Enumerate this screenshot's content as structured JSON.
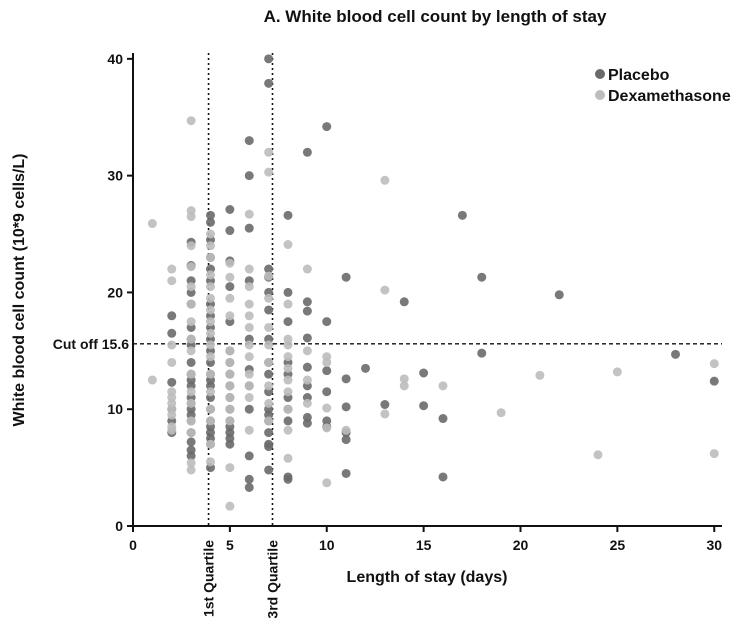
{
  "chart_data": {
    "type": "scatter",
    "title": "A. White blood cell count by length of stay",
    "x_label": "Length of stay (days)",
    "y_label": "White blood  cell count (10*9 cells/L)",
    "xlim": [
      0,
      30.4
    ],
    "ylim": [
      0,
      40.5
    ],
    "xticks": [
      0,
      5,
      10,
      15,
      20,
      25,
      30
    ],
    "yticks": [
      0,
      10,
      20,
      30,
      40
    ],
    "legend": "upper right",
    "reference_lines": [
      {
        "axis": "x",
        "value": 3.9,
        "label": "1st Quartile"
      },
      {
        "axis": "x",
        "value": 7.2,
        "label": "3rd Quartile"
      },
      {
        "axis": "y",
        "value": 15.6,
        "label": "Cut off 15.6"
      }
    ],
    "series": [
      {
        "name": "Placebo",
        "color": "#6a6a6a",
        "x": [
          2,
          2,
          2,
          2,
          2,
          2,
          3,
          3,
          3,
          3,
          3,
          3,
          3,
          3,
          3,
          3,
          3,
          3,
          3,
          3,
          3,
          3,
          3,
          3,
          3,
          3,
          3,
          4,
          4,
          4,
          4,
          4,
          4,
          4,
          4,
          4,
          4,
          4,
          4,
          4,
          4,
          4,
          4,
          4,
          4,
          4,
          4,
          4,
          4,
          4,
          5,
          5,
          5,
          5,
          5,
          5,
          5,
          5,
          5,
          5,
          5,
          5,
          5,
          5,
          5,
          5,
          6,
          6,
          6,
          6,
          6,
          6,
          6,
          6,
          6,
          6,
          6,
          7,
          7,
          7,
          7,
          7,
          7,
          7,
          7,
          7,
          7,
          7,
          7,
          7,
          7,
          7,
          7,
          7,
          8,
          8,
          8,
          8,
          8,
          8,
          8,
          8,
          8,
          8,
          9,
          9,
          9,
          9,
          9,
          9,
          9,
          9,
          9,
          10,
          10,
          10,
          10,
          10,
          10,
          11,
          11,
          11,
          11,
          11,
          11,
          12,
          13,
          14,
          15,
          15,
          16,
          16,
          17,
          18,
          18,
          22,
          28,
          30
        ],
        "values": [
          18,
          16.5,
          12.3,
          10,
          9,
          8,
          24.3,
          22.3,
          21,
          20,
          19,
          17,
          16,
          15.5,
          14,
          13,
          12.5,
          12,
          11,
          10.5,
          10,
          9.5,
          9,
          8,
          7.2,
          6.5,
          6,
          26.6,
          26,
          24.5,
          23,
          22,
          21,
          19,
          18,
          17,
          16,
          15,
          14,
          13,
          12.5,
          12,
          11,
          10,
          9,
          8.5,
          8,
          7.5,
          7,
          5,
          27.1,
          25.3,
          22.7,
          20.5,
          17.5,
          15,
          14,
          13,
          12,
          11,
          10,
          9,
          8.5,
          8,
          7.5,
          7,
          33,
          30,
          25.5,
          21,
          16,
          13.4,
          12,
          10,
          6,
          4,
          3.3,
          40,
          37.9,
          22,
          21.3,
          20,
          18.5,
          16,
          14,
          13,
          11.5,
          10,
          9.5,
          9,
          8,
          7,
          6.8,
          4.8,
          26.6,
          20,
          17.5,
          14,
          13,
          11,
          10,
          9,
          4.2,
          4,
          32,
          19.2,
          18.4,
          16.1,
          13.6,
          12,
          11,
          9.3,
          8.8,
          34.2,
          17.5,
          13.3,
          11.5,
          9,
          8.5,
          21.3,
          12.6,
          10.2,
          8,
          7.4,
          4.5,
          13.5,
          10.4,
          19.2,
          13.1,
          10.3,
          9.2,
          4.2,
          26.6,
          21.3,
          14.8,
          19.8,
          14.7,
          12.4
        ]
      },
      {
        "name": "Dexamethasone",
        "color": "#bdbdbd",
        "x": [
          1,
          1,
          2,
          2,
          2,
          2,
          2,
          2,
          2,
          2,
          2,
          2,
          2,
          3,
          3,
          3,
          3,
          3,
          3,
          3,
          3,
          3,
          3,
          3,
          3,
          3,
          3,
          3,
          3,
          3,
          4,
          4,
          4,
          4,
          4,
          4,
          4,
          4,
          4,
          4,
          4,
          4,
          4,
          4,
          4,
          4,
          4,
          5,
          5,
          5,
          5,
          5,
          5,
          5,
          5,
          5,
          5,
          5,
          5,
          5,
          6,
          6,
          6,
          6,
          6,
          6,
          6,
          6,
          6,
          6,
          6,
          6,
          7,
          7,
          7,
          7,
          7,
          7,
          7,
          7,
          7,
          7,
          8,
          8,
          8,
          8,
          8,
          8,
          8,
          8,
          8,
          8,
          8,
          9,
          9,
          9,
          9,
          10,
          10,
          10,
          10,
          10,
          11,
          13,
          13,
          13,
          14,
          14,
          16,
          19,
          21,
          24,
          25,
          30,
          30
        ],
        "values": [
          25.9,
          12.5,
          22,
          21,
          15.5,
          14,
          11.5,
          11,
          10.5,
          10,
          9.5,
          8.5,
          8.2,
          34.7,
          27,
          26.5,
          24,
          22.2,
          20.5,
          19,
          17.5,
          16,
          15,
          13,
          11.5,
          10.5,
          9,
          8,
          5.4,
          4.8,
          25,
          24,
          23,
          21.5,
          20.5,
          19.5,
          18.5,
          17.5,
          16.5,
          15.5,
          14.5,
          13,
          11.5,
          10,
          9,
          7,
          5.5,
          22.5,
          21.3,
          19.5,
          18,
          15,
          14,
          13,
          12,
          11,
          10,
          9,
          5,
          1.7,
          26.7,
          22,
          20.5,
          19,
          18,
          17,
          15.5,
          14.5,
          13,
          12,
          11,
          8.2,
          32,
          30.3,
          21.4,
          19.5,
          17,
          15.5,
          14,
          12,
          10.5,
          9,
          24.1,
          19,
          16,
          15.5,
          14.5,
          13.5,
          12.5,
          11.5,
          10,
          8.2,
          5.8,
          22,
          15,
          12.5,
          10.5,
          14.5,
          14,
          10.1,
          8.4,
          3.7,
          8.2,
          29.6,
          20.2,
          9.6,
          12.6,
          12,
          12,
          9.7,
          12.9,
          6.1,
          13.2,
          13.9,
          6.2
        ]
      }
    ]
  }
}
